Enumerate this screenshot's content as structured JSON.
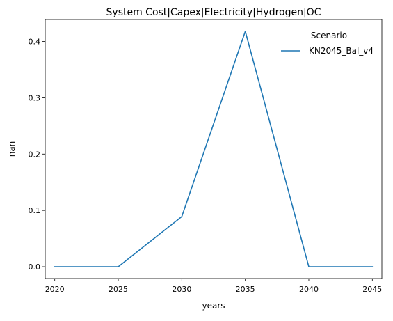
{
  "chart_data": {
    "type": "line",
    "title": "System Cost|Capex|Electricity|Hydrogen|OC",
    "xlabel": "years",
    "ylabel": "nan",
    "x": [
      2020,
      2025,
      2030,
      2035,
      2040,
      2045
    ],
    "x_ticks": [
      "2020",
      "2025",
      "2030",
      "2035",
      "2040",
      "2045"
    ],
    "y_ticks": [
      "0.0",
      "0.1",
      "0.2",
      "0.3",
      "0.4"
    ],
    "xlim": [
      2019.25,
      2045.75
    ],
    "ylim": [
      -0.021,
      0.439
    ],
    "grid": false,
    "legend": {
      "title": "Scenario",
      "placement": "top-right",
      "frame": false
    },
    "series": [
      {
        "name": "KN2045_Bal_v4",
        "color": "#1f77b4",
        "values": [
          0.0,
          0.0,
          0.089,
          0.418,
          0.0,
          0.0
        ]
      }
    ]
  }
}
